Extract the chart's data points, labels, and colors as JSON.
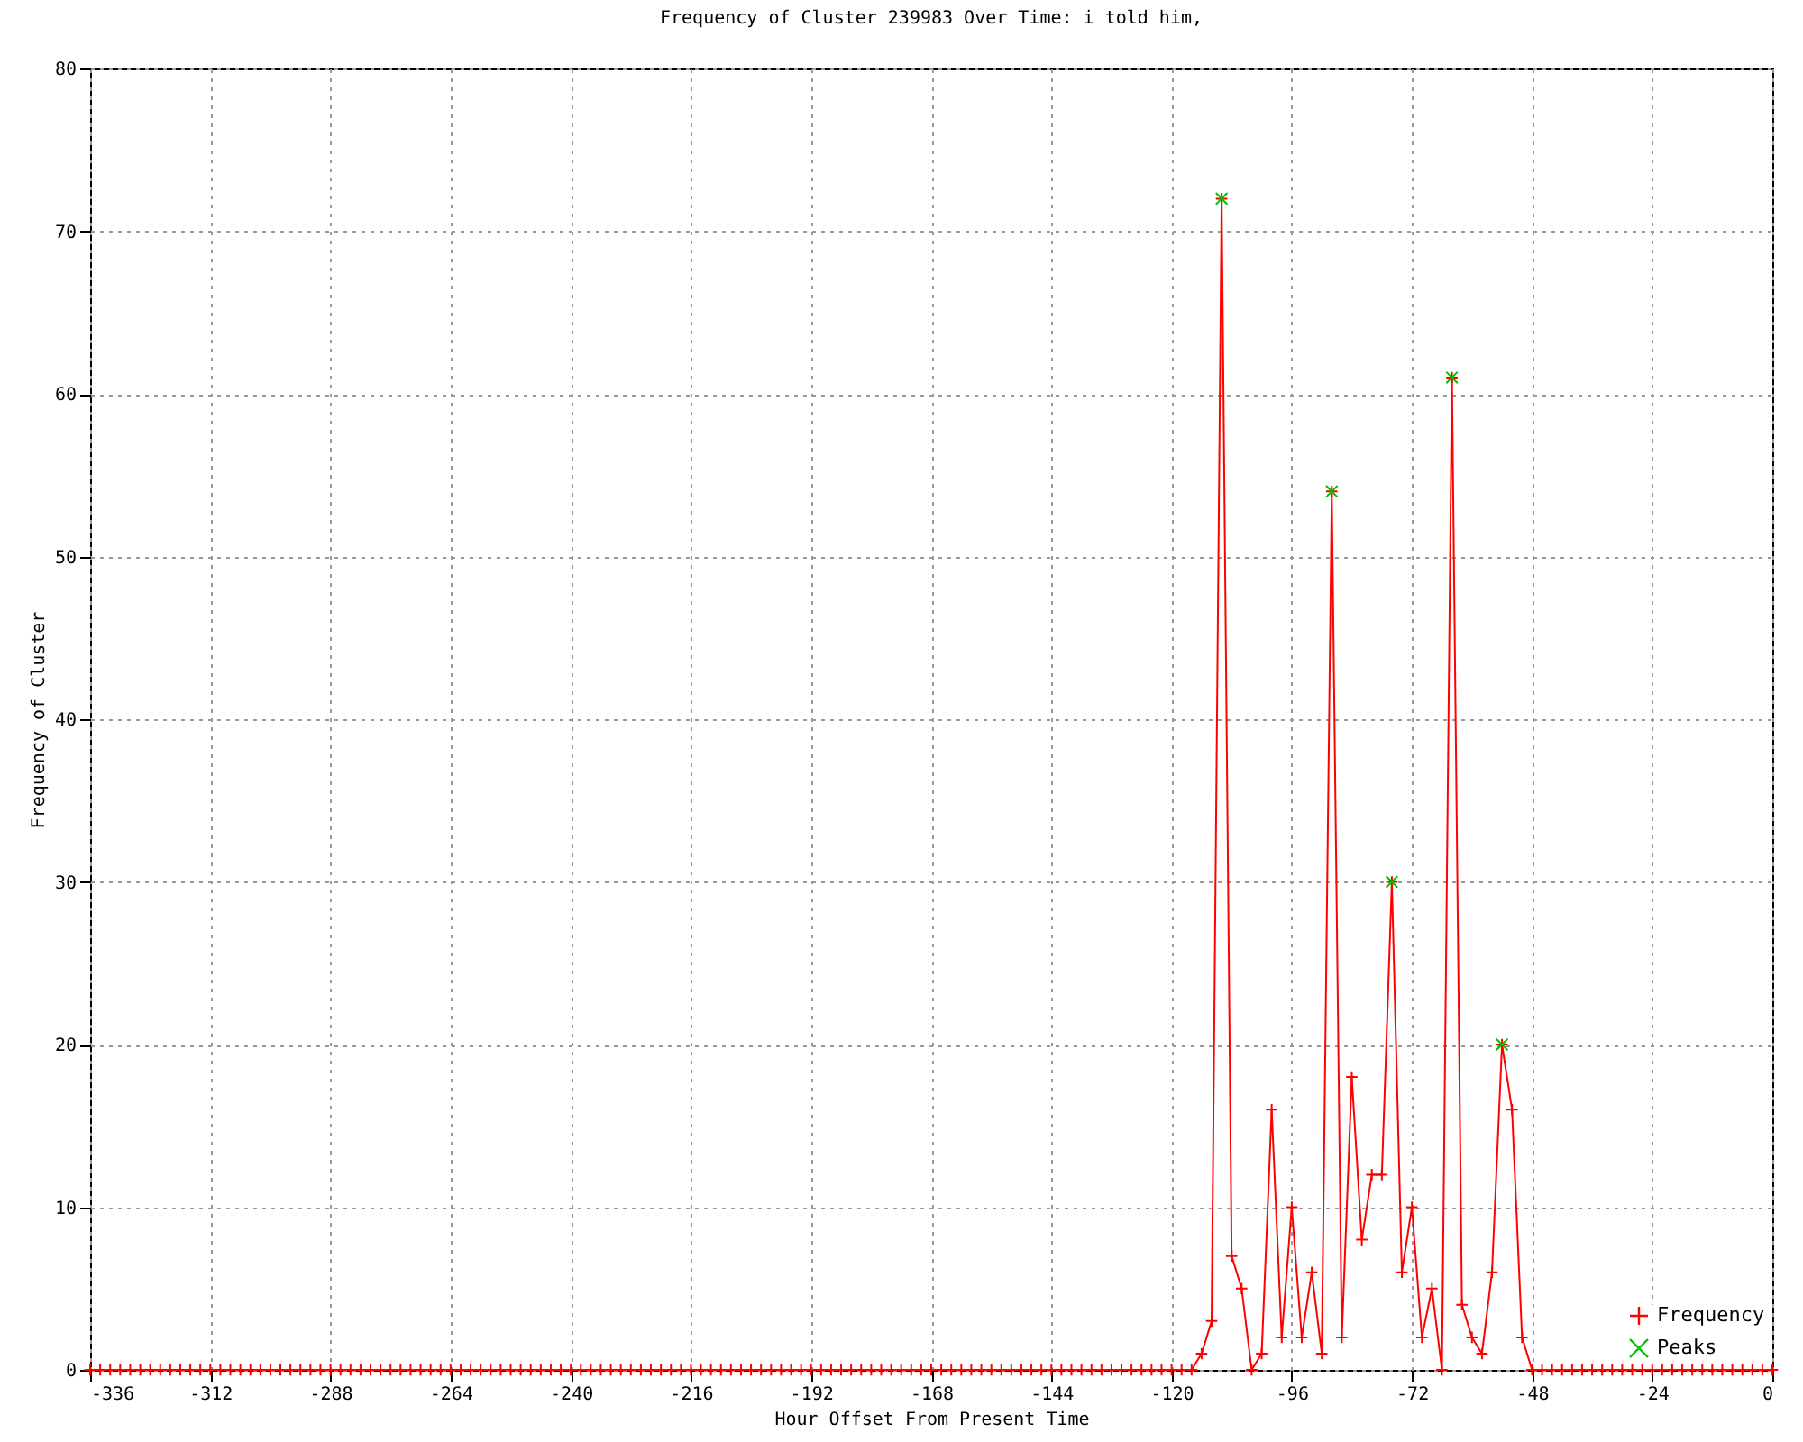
{
  "chart_data": {
    "type": "line",
    "title": "Frequency of Cluster 239983 Over Time: i told him,",
    "xlabel": "Hour Offset From Present Time",
    "ylabel": "Frequency of Cluster",
    "xlim": [
      -336,
      0
    ],
    "xticks": [
      -336,
      -312,
      -288,
      -264,
      -240,
      -216,
      -192,
      -168,
      -144,
      -120,
      -96,
      -72,
      -48,
      -24,
      0
    ],
    "ylim": [
      0,
      80
    ],
    "yticks": [
      0,
      10,
      20,
      30,
      40,
      50,
      60,
      70,
      80
    ],
    "grid": true,
    "legend": "bottom right",
    "series": [
      {
        "name": "Frequency",
        "color": "#ff0000",
        "marker": "cross",
        "x": [
          -336,
          -334,
          -332,
          -330,
          -328,
          -326,
          -324,
          -322,
          -320,
          -318,
          -316,
          -314,
          -312,
          -310,
          -308,
          -306,
          -304,
          -302,
          -300,
          -298,
          -296,
          -294,
          -292,
          -290,
          -288,
          -286,
          -284,
          -282,
          -280,
          -278,
          -276,
          -274,
          -272,
          -270,
          -268,
          -266,
          -264,
          -262,
          -260,
          -258,
          -256,
          -254,
          -252,
          -250,
          -248,
          -246,
          -244,
          -242,
          -240,
          -238,
          -236,
          -234,
          -232,
          -230,
          -228,
          -226,
          -224,
          -222,
          -220,
          -218,
          -216,
          -214,
          -212,
          -210,
          -208,
          -206,
          -204,
          -202,
          -200,
          -198,
          -196,
          -194,
          -192,
          -190,
          -188,
          -186,
          -184,
          -182,
          -180,
          -178,
          -176,
          -174,
          -172,
          -170,
          -168,
          -166,
          -164,
          -162,
          -160,
          -158,
          -156,
          -154,
          -152,
          -150,
          -148,
          -146,
          -144,
          -142,
          -140,
          -138,
          -136,
          -134,
          -132,
          -130,
          -128,
          -126,
          -124,
          -122,
          -120,
          -118,
          -116,
          -114,
          -112,
          -110,
          -108,
          -106,
          -104,
          -102,
          -100,
          -98,
          -96,
          -94,
          -92,
          -90,
          -88,
          -86,
          -84,
          -82,
          -80,
          -78,
          -76,
          -74,
          -72,
          -70,
          -68,
          -66,
          -64,
          -62,
          -60,
          -58,
          -56,
          -54,
          -52,
          -50,
          -48,
          -46,
          -44,
          -42,
          -40,
          -38,
          -36,
          -34,
          -32,
          -30,
          -28,
          -26,
          -24,
          -22,
          -20,
          -18,
          -16,
          -14,
          -12,
          -10,
          -8,
          -6,
          -4,
          -2,
          0
        ],
        "values": [
          0,
          0,
          0,
          0,
          0,
          0,
          0,
          0,
          0,
          0,
          0,
          0,
          0,
          0,
          0,
          0,
          0,
          0,
          0,
          0,
          0,
          0,
          0,
          0,
          0,
          0,
          0,
          0,
          0,
          0,
          0,
          0,
          0,
          0,
          0,
          0,
          0,
          0,
          0,
          0,
          0,
          0,
          0,
          0,
          0,
          0,
          0,
          0,
          0,
          0,
          0,
          0,
          0,
          0,
          0,
          0,
          0,
          0,
          0,
          0,
          0,
          0,
          0,
          0,
          0,
          0,
          0,
          0,
          0,
          0,
          0,
          0,
          0,
          0,
          0,
          0,
          0,
          0,
          0,
          0,
          0,
          0,
          0,
          0,
          0,
          0,
          0,
          0,
          0,
          0,
          0,
          0,
          0,
          0,
          0,
          0,
          0,
          0,
          0,
          0,
          0,
          0,
          0,
          0,
          0,
          0,
          0,
          0,
          0,
          0,
          0,
          1,
          3,
          72,
          7,
          5,
          0,
          1,
          16,
          2,
          10,
          2,
          6,
          1,
          54,
          2,
          18,
          8,
          12,
          12,
          30,
          6,
          10,
          2,
          5,
          0,
          61,
          4,
          2,
          1,
          6,
          20,
          16,
          2,
          0,
          0,
          0,
          0,
          0,
          0,
          0,
          0,
          0,
          0,
          0,
          0,
          0,
          0,
          0,
          0,
          0,
          0,
          0,
          0,
          0,
          0,
          0,
          0,
          0
        ]
      },
      {
        "name": "Peaks",
        "type": "scatter",
        "color": "#00c000",
        "marker": "cross",
        "x": [
          -110,
          -88,
          -76,
          -64,
          -54
        ],
        "values": [
          72,
          54,
          30,
          61,
          20
        ]
      }
    ]
  }
}
